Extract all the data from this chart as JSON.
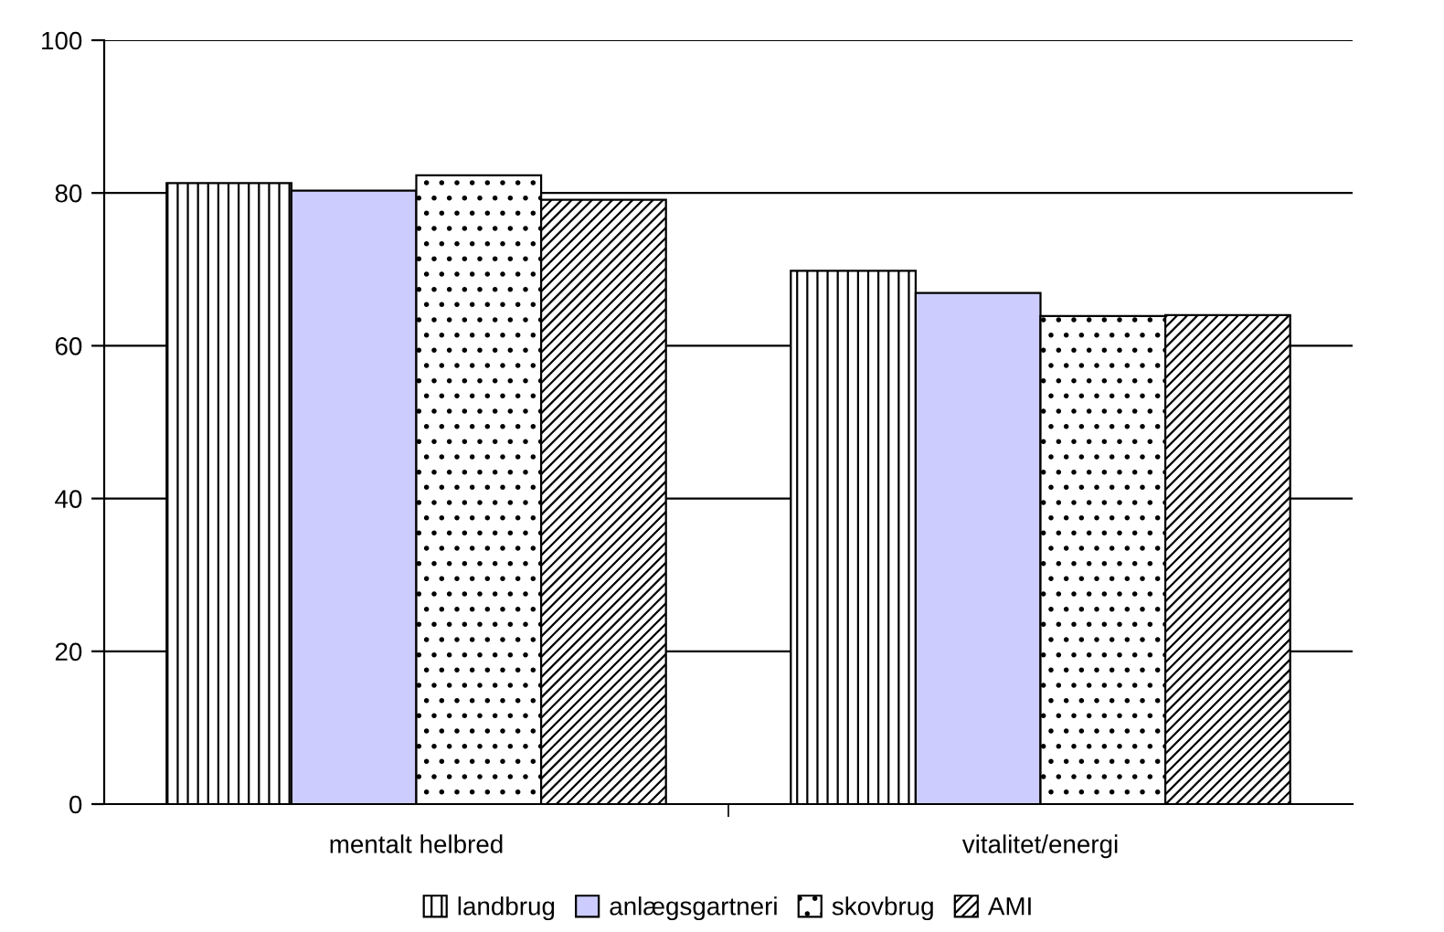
{
  "chart_data": {
    "type": "bar",
    "categories": [
      "mentalt helbred",
      "vitalitet/energi"
    ],
    "series": [
      {
        "name": "landbrug",
        "color": "#ffffff",
        "values": [
          81.3,
          69.8
        ]
      },
      {
        "name": "anlægsgartneri",
        "color": "#ccccff",
        "values": [
          80.3,
          66.9
        ]
      },
      {
        "name": "skovbrug",
        "color": "#ffffff",
        "values": [
          82.3,
          63.9
        ]
      },
      {
        "name": "AMI",
        "color": "#ffffff",
        "values": [
          79.1,
          64.0
        ]
      }
    ],
    "ylim": [
      0,
      100
    ],
    "yticks": [
      0,
      20,
      40,
      60,
      80,
      100
    ],
    "grid": "y",
    "legend": "bottom"
  }
}
